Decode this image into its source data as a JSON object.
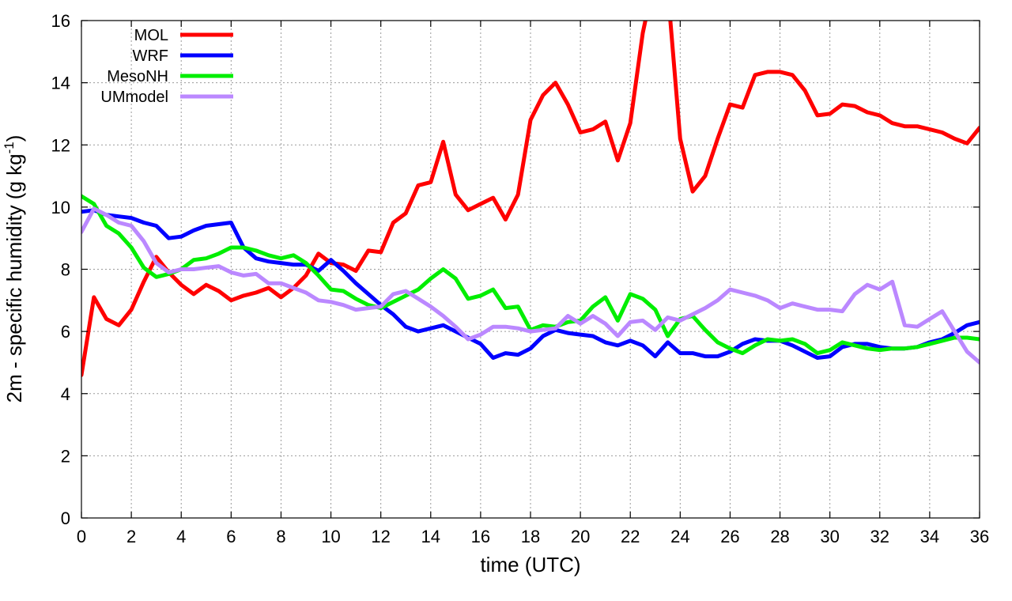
{
  "chart_data": {
    "type": "line",
    "xlabel": "time (UTC)",
    "ylabel": "2m - specific humidity (g kg",
    "ylabel_sup": "-1",
    "ylabel_tail": ")",
    "xlim": [
      0,
      36
    ],
    "ylim": [
      0,
      16
    ],
    "xticks": [
      0,
      2,
      4,
      6,
      8,
      10,
      12,
      14,
      16,
      18,
      20,
      22,
      24,
      26,
      28,
      30,
      32,
      34,
      36
    ],
    "yticks": [
      0,
      2,
      4,
      6,
      8,
      10,
      12,
      14,
      16
    ],
    "grid": true,
    "legend_position": "top-left",
    "series": [
      {
        "name": "MOL",
        "color": "#ff0000",
        "x": [
          0,
          0.5,
          1,
          1.5,
          2,
          2.5,
          3,
          3.5,
          4,
          4.5,
          5,
          5.5,
          6,
          6.5,
          7,
          7.5,
          8,
          8.5,
          9,
          9.5,
          10,
          10.5,
          11,
          11.5,
          12,
          12.5,
          13,
          13.5,
          14,
          14.5,
          15,
          15.5,
          16,
          16.5,
          17,
          17.5,
          18,
          18.5,
          19,
          19.5,
          20,
          20.5,
          21,
          21.5,
          22,
          22.5,
          23,
          23.5,
          24,
          24.5,
          25,
          25.5,
          26,
          26.5,
          27,
          27.5,
          28,
          28.5,
          29,
          29.5,
          30,
          30.5,
          31,
          31.5,
          32,
          32.5,
          33,
          33.5,
          34,
          34.5,
          35,
          35.5,
          36
        ],
        "values": [
          4.6,
          7.1,
          6.4,
          6.2,
          6.7,
          7.6,
          8.4,
          7.9,
          7.5,
          7.2,
          7.5,
          7.3,
          7.0,
          7.15,
          7.25,
          7.4,
          7.1,
          7.4,
          7.8,
          8.5,
          8.2,
          8.15,
          7.95,
          8.6,
          8.55,
          9.5,
          9.8,
          10.7,
          10.8,
          12.1,
          10.4,
          9.9,
          10.1,
          10.3,
          9.6,
          10.4,
          12.8,
          13.6,
          14.0,
          13.3,
          12.4,
          12.5,
          12.75,
          11.5,
          12.7,
          15.6,
          17.5,
          17.0,
          12.2,
          10.5,
          11.0,
          12.2,
          13.3,
          13.2,
          14.25,
          14.35,
          14.35,
          14.25,
          13.75,
          12.95,
          13.0,
          13.3,
          13.25,
          13.05,
          12.95,
          12.7,
          12.6,
          12.6,
          12.5,
          12.4,
          12.2,
          12.05,
          12.55
        ]
      },
      {
        "name": "WRF",
        "color": "#0000ff",
        "x": [
          0,
          0.5,
          1,
          1.5,
          2,
          2.5,
          3,
          3.5,
          4,
          4.5,
          5,
          5.5,
          6,
          6.5,
          7,
          7.5,
          8,
          8.5,
          9,
          9.5,
          10,
          10.5,
          11,
          11.5,
          12,
          12.5,
          13,
          13.5,
          14,
          14.5,
          15,
          15.5,
          16,
          16.5,
          17,
          17.5,
          18,
          18.5,
          19,
          19.5,
          20,
          20.5,
          21,
          21.5,
          22,
          22.5,
          23,
          23.5,
          24,
          24.5,
          25,
          25.5,
          26,
          26.5,
          27,
          27.5,
          28,
          28.5,
          29,
          29.5,
          30,
          30.5,
          31,
          31.5,
          32,
          32.5,
          33,
          33.5,
          34,
          34.5,
          35,
          35.5,
          36
        ],
        "values": [
          9.85,
          9.9,
          9.75,
          9.7,
          9.65,
          9.5,
          9.4,
          9.0,
          9.05,
          9.25,
          9.4,
          9.45,
          9.5,
          8.7,
          8.35,
          8.25,
          8.2,
          8.15,
          8.15,
          7.95,
          8.3,
          7.95,
          7.55,
          7.2,
          6.85,
          6.55,
          6.15,
          6.0,
          6.1,
          6.2,
          6.0,
          5.8,
          5.6,
          5.15,
          5.3,
          5.25,
          5.45,
          5.85,
          6.05,
          5.95,
          5.9,
          5.85,
          5.65,
          5.55,
          5.7,
          5.55,
          5.2,
          5.65,
          5.3,
          5.3,
          5.2,
          5.2,
          5.35,
          5.6,
          5.75,
          5.7,
          5.7,
          5.55,
          5.35,
          5.15,
          5.2,
          5.5,
          5.6,
          5.6,
          5.5,
          5.45,
          5.45,
          5.5,
          5.65,
          5.75,
          5.95,
          6.2,
          6.3
        ]
      },
      {
        "name": "MesoNH",
        "color": "#00ee00",
        "x": [
          0,
          0.5,
          1,
          1.5,
          2,
          2.5,
          3,
          3.5,
          4,
          4.5,
          5,
          5.5,
          6,
          6.5,
          7,
          7.5,
          8,
          8.5,
          9,
          9.5,
          10,
          10.5,
          11,
          11.5,
          12,
          12.5,
          13,
          13.5,
          14,
          14.5,
          15,
          15.5,
          16,
          16.5,
          17,
          17.5,
          18,
          18.5,
          19,
          19.5,
          20,
          20.5,
          21,
          21.5,
          22,
          22.5,
          23,
          23.5,
          24,
          24.5,
          25,
          25.5,
          26,
          26.5,
          27,
          27.5,
          28,
          28.5,
          29,
          29.5,
          30,
          30.5,
          31,
          31.5,
          32,
          32.5,
          33,
          33.5,
          34,
          34.5,
          35,
          35.5,
          36
        ],
        "values": [
          10.35,
          10.1,
          9.4,
          9.15,
          8.7,
          8.05,
          7.75,
          7.85,
          8.0,
          8.3,
          8.35,
          8.5,
          8.7,
          8.7,
          8.6,
          8.45,
          8.35,
          8.45,
          8.2,
          7.8,
          7.35,
          7.3,
          7.05,
          6.85,
          6.75,
          6.95,
          7.15,
          7.35,
          7.7,
          8.0,
          7.7,
          7.05,
          7.15,
          7.35,
          6.75,
          6.8,
          6.05,
          6.2,
          6.15,
          6.3,
          6.35,
          6.8,
          7.1,
          6.35,
          7.2,
          7.05,
          6.7,
          5.85,
          6.4,
          6.5,
          6.05,
          5.65,
          5.45,
          5.3,
          5.55,
          5.75,
          5.7,
          5.75,
          5.6,
          5.3,
          5.4,
          5.65,
          5.55,
          5.45,
          5.4,
          5.45,
          5.45,
          5.5,
          5.6,
          5.7,
          5.8,
          5.8,
          5.75
        ]
      },
      {
        "name": "UMmodel",
        "color": "#bb88ff",
        "x": [
          0,
          0.5,
          1,
          1.5,
          2,
          2.5,
          3,
          3.5,
          4,
          4.5,
          5,
          5.5,
          6,
          6.5,
          7,
          7.5,
          8,
          8.5,
          9,
          9.5,
          10,
          10.5,
          11,
          11.5,
          12,
          12.5,
          13,
          13.5,
          14,
          14.5,
          15,
          15.5,
          16,
          16.5,
          17,
          17.5,
          18,
          18.5,
          19,
          19.5,
          20,
          20.5,
          21,
          21.5,
          22,
          22.5,
          23,
          23.5,
          24,
          24.5,
          25,
          25.5,
          26,
          26.5,
          27,
          27.5,
          28,
          28.5,
          29,
          29.5,
          30,
          30.5,
          31,
          31.5,
          32,
          32.5,
          33,
          33.5,
          34,
          34.5,
          35,
          35.5,
          36
        ],
        "values": [
          9.2,
          9.95,
          9.75,
          9.5,
          9.4,
          8.9,
          8.2,
          7.9,
          8.0,
          8.0,
          8.05,
          8.1,
          7.9,
          7.8,
          7.85,
          7.55,
          7.55,
          7.4,
          7.25,
          7.0,
          6.95,
          6.85,
          6.7,
          6.75,
          6.8,
          7.2,
          7.3,
          7.05,
          6.8,
          6.5,
          6.15,
          5.75,
          5.9,
          6.15,
          6.15,
          6.1,
          6.0,
          6.05,
          6.1,
          6.5,
          6.25,
          6.5,
          6.25,
          5.85,
          6.3,
          6.35,
          6.05,
          6.45,
          6.35,
          6.55,
          6.75,
          7.0,
          7.35,
          7.25,
          7.15,
          7.0,
          6.75,
          6.9,
          6.8,
          6.7,
          6.7,
          6.65,
          7.2,
          7.5,
          7.35,
          7.6,
          6.2,
          6.15,
          6.4,
          6.65,
          6.0,
          5.35,
          5.0
        ]
      }
    ]
  }
}
